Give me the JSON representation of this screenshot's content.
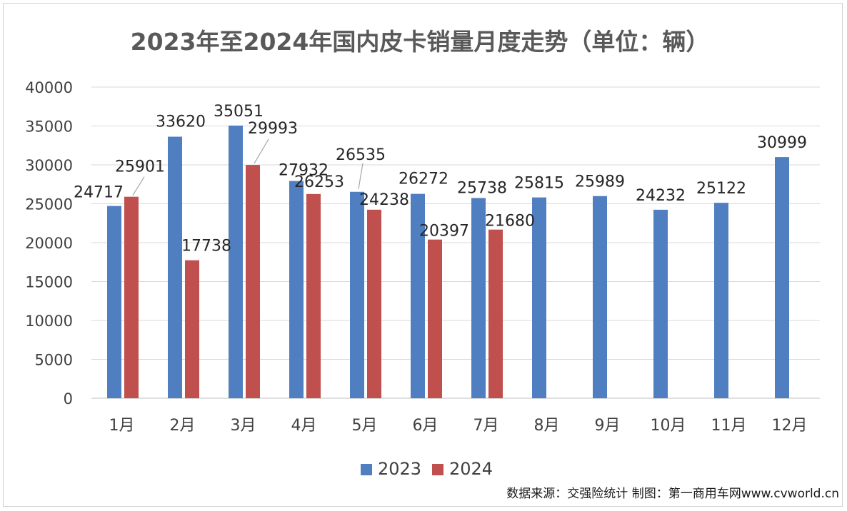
{
  "chart_data": {
    "type": "bar",
    "title": "2023年至2024年国内皮卡销量月度走势（单位：辆）",
    "categories": [
      "1月",
      "2月",
      "3月",
      "4月",
      "5月",
      "6月",
      "7月",
      "8月",
      "9月",
      "10月",
      "11月",
      "12月"
    ],
    "series": [
      {
        "name": "2023",
        "color": "#4f7fc0",
        "values": [
          24717,
          33620,
          35051,
          27932,
          26535,
          26272,
          25738,
          25815,
          25989,
          24232,
          25122,
          30999
        ]
      },
      {
        "name": "2024",
        "color": "#c0504d",
        "values": [
          25901,
          17738,
          29993,
          26253,
          24238,
          20397,
          21680,
          null,
          null,
          null,
          null,
          null
        ]
      }
    ],
    "xlabel": "",
    "ylabel": "",
    "ylim": [
      0,
      40000
    ],
    "yticks": [
      0,
      5000,
      10000,
      15000,
      20000,
      25000,
      30000,
      35000,
      40000
    ],
    "grid": true,
    "legend": "bottom-center"
  },
  "source_note": "数据来源：交强险统计 制图：第一商用车网www.cvworld.cn"
}
